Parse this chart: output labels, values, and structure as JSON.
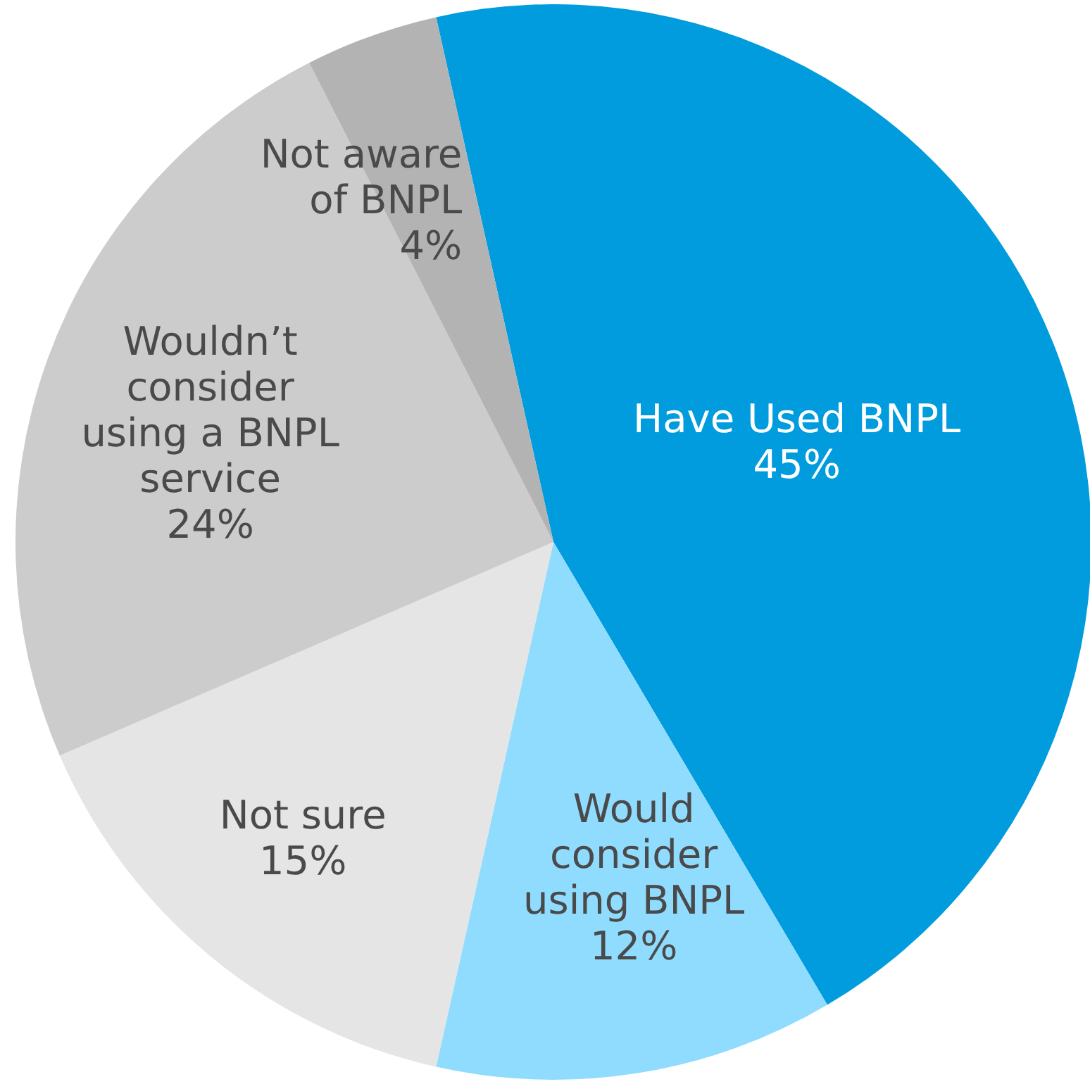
{
  "chart_data": {
    "type": "pie",
    "categories": [
      "Have Used BNPL",
      "Would consider using BNPL",
      "Not sure",
      "Wouldn’t consider using a BNPL service",
      "Not aware of BNPL"
    ],
    "values": [
      45,
      12,
      15,
      24,
      4
    ],
    "colors": [
      "#009cde",
      "#8fdcff",
      "#e5e5e5",
      "#cccccc",
      "#b3b3b3"
    ],
    "value_labels": [
      "45%",
      "12%",
      "15%",
      "24%",
      "4%"
    ]
  }
}
